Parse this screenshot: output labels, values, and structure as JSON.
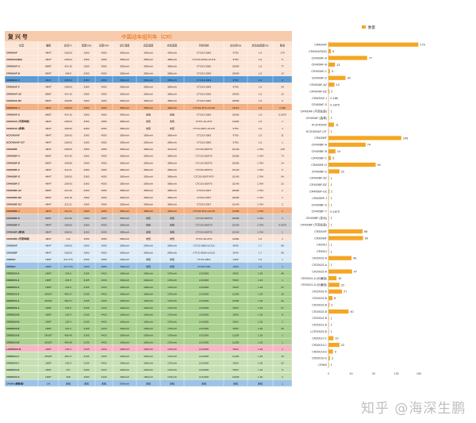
{
  "table": {
    "label_left": "复 兴 号",
    "title": "中国动车组列车（CR）",
    "headers": [
      "车型",
      "编组",
      "定员/人",
      "宽度/mm",
      "高度/mm",
      "设计速度",
      "运营速度",
      "实验速度",
      "列控系统",
      "总功率/kw",
      "启动加速度m/s",
      "数量"
    ],
    "rows": [
      {
        "c": [
          "CR400AF",
          "4M4T",
          "208.93",
          "3360",
          "4050",
          "350km/h",
          "350km/h",
          "420km/h",
          "CTCS3-300S",
          "9750",
          "1.0",
          "179"
        ],
        "bg": "#fce4d6",
        "hl": ""
      },
      {
        "c": [
          "CR400AF(BZ)",
          "4M4T",
          "208.93",
          "3360",
          "4050",
          "350km/h",
          "350km/h",
          "385km/h",
          "CTCS3-300S+LKJ15",
          "9750",
          "1.0",
          "5"
        ],
        "bg": "#fce4d6",
        "hl": ""
      },
      {
        "c": [
          "CR400AF-A",
          "8M8T",
          "414.15",
          "3360",
          "4050",
          "350km/h",
          "350km/h",
          "385km/h",
          "CTCS3-300S",
          "19500",
          "1.0",
          "77"
        ],
        "bg": "#fce4d6",
        "hl": ""
      },
      {
        "c": [
          "CR400AF-B",
          "8M9T",
          "439.9",
          "3360",
          "4050",
          "350km/h",
          "350km/h",
          "385km/h",
          "CTCS3-300S",
          "19500",
          "1.0",
          "13"
        ],
        "bg": "#fce4d6",
        "hl": ""
      },
      {
        "c": [
          "CR400AF-C",
          "4M4T",
          "208.93",
          "3360",
          "4050",
          "350km/h",
          "350km/h",
          "385km/h",
          "CTCS3-300S",
          "9750",
          "1.0",
          "3"
        ],
        "bg": "#5b9bd5",
        "hl": "blue"
      },
      {
        "c": [
          "CR400AF-Z",
          "4M4T",
          "208.93",
          "3360",
          "4050",
          "350km/h",
          "350km/h",
          "385km/h",
          "CTCS3-300S",
          "9750",
          "1.0",
          "34"
        ],
        "bg": "#fce4d6",
        "hl": ""
      },
      {
        "c": [
          "CR400AF-AZ",
          "8M8T",
          "414.15",
          "3360",
          "4050",
          "350km/h",
          "350km/h",
          "385km/h",
          "CTCS3-300S",
          "19500",
          "1.0",
          "12"
        ],
        "bg": "#fce4d6",
        "hl": ""
      },
      {
        "c": [
          "CR400AF-BZ",
          "8M9T",
          "439.85",
          "3360",
          "4050",
          "350km/h",
          "350km/h",
          "385km/h",
          "CTCS3-300S",
          "19500",
          "1.0",
          "2"
        ],
        "bg": "#fce4d6",
        "hl": ""
      },
      {
        "c": [
          "CR400AF-J",
          "4M4T",
          "208.93",
          "3360",
          "4050",
          "350km/h",
          "385km/h",
          "400km/h",
          "CTCS4 ATO+LKJ15",
          "13312",
          "1.0",
          "0.188"
        ],
        "bg": "#f4b183",
        "hl": "orange"
      },
      {
        "c": [
          "CR400AF-S",
          "8M8T",
          "414.15",
          "3360",
          "4050",
          "350km/h",
          "未知",
          "未知",
          "CTCS3-300S",
          "15000",
          "1.0",
          "0.1875"
        ],
        "bg": "#fce4d6",
        "hl": ""
      },
      {
        "c": [
          "CR400AF (可变轨距)",
          "4M4T",
          "208.93",
          "3360",
          "4050",
          "350km/h",
          "未知",
          "未知",
          "CTCS 4G-ATO",
          "11000",
          "1.0",
          "1"
        ],
        "bg": "#fce4d6",
        "hl": ""
      },
      {
        "c": [
          "CR400AF (高寒)",
          "4M4T",
          "208.93",
          "3360",
          "4050",
          "350km/h",
          "未知",
          "未知",
          "CTCS-300T+LKJ15",
          "9750",
          "1.0",
          "1"
        ],
        "bg": "#fce4d6",
        "hl": ""
      },
      {
        "c": [
          "KCIC400AF",
          "4M4T",
          "208.93",
          "3360",
          "4050",
          "350km/h",
          "350km/h",
          "385km/h",
          "CTCS3-300S",
          "9750",
          "1.0",
          "11"
        ],
        "bg": "#fce4d6",
        "hl": ""
      },
      {
        "c": [
          "KCIC400AF-CIT",
          "4M4T",
          "208.93",
          "3360",
          "4050",
          "350km/h",
          "350km/h",
          "385km/h",
          "CTCS3-300S",
          "9750",
          "1.0",
          "1"
        ],
        "bg": "#fce4d6",
        "hl": ""
      },
      {
        "c": [
          "CR400BF",
          "4M4T",
          "208.93",
          "3360",
          "4050",
          "350km/h",
          "350km/h",
          "421km/h",
          "CTCS3-300T/S",
          "10140",
          "1.764",
          "145"
        ],
        "bg": "#fce4d6",
        "hl": ""
      },
      {
        "c": [
          "CR400BF-A",
          "8M8T",
          "414.26",
          "3360",
          "4050",
          "350km/h",
          "350km/h",
          "385km/h",
          "CTCS3-300T/S",
          "20280",
          "1.764",
          "74"
        ],
        "bg": "#fce4d6",
        "hl": ""
      },
      {
        "c": [
          "CR400BF-B",
          "8M9T",
          "438.86",
          "3360",
          "4050",
          "350km/h",
          "350km/h",
          "385km/h",
          "CTCS3-300T/S",
          "20280",
          "1.764",
          "14"
        ],
        "bg": "#fce4d6",
        "hl": ""
      },
      {
        "c": [
          "CR400BF-C",
          "4M4T",
          "211.21",
          "3360",
          "4050",
          "350km/h",
          "350km/h",
          "385km/h",
          "CTCS3-300T/S",
          "10140",
          "1.764",
          "5"
        ],
        "bg": "#fce4d6",
        "hl": ""
      },
      {
        "c": [
          "CR400BF-G",
          "4M4T",
          "208.93",
          "3360",
          "4050",
          "350km/h",
          "350km/h",
          "385km/h",
          "CTCS3-300T/ATO",
          "10140",
          "1.764",
          "94"
        ],
        "bg": "#fce4d6",
        "hl": ""
      },
      {
        "c": [
          "CR400BF-Z",
          "4M4T",
          "208.93",
          "3360",
          "4050",
          "350km/h",
          "350km/h",
          "385km/h",
          "CTCS3-300T/S",
          "10140",
          "1.764",
          "22"
        ],
        "bg": "#fce4d6",
        "hl": ""
      },
      {
        "c": [
          "CR400BF-AZ",
          "8M8T",
          "414.26",
          "3360",
          "4050",
          "350km/h",
          "350km/h",
          "385km/h",
          "CTCS3-300T",
          "20280",
          "1.764",
          "1"
        ],
        "bg": "#fce4d6",
        "hl": ""
      },
      {
        "c": [
          "CR400BF-BZ",
          "8M9T",
          "442.16",
          "3360",
          "4050",
          "350km/h",
          "350km/h",
          "385km/h",
          "CTCS3-300T",
          "20280",
          "1.764",
          "1"
        ],
        "bg": "#fce4d6",
        "hl": ""
      },
      {
        "c": [
          "CR400BF-GZ",
          "4M4T",
          "211.21",
          "3360",
          "4050",
          "350km/h",
          "350km/h",
          "385km/h",
          "CTCS3-300T",
          "10140",
          "1.764",
          "2"
        ],
        "bg": "#fce4d6",
        "hl": ""
      },
      {
        "c": [
          "CR400BF-J",
          "4M4T",
          "211.21",
          "3360",
          "4050",
          "350km/h",
          "385km/h",
          "400km/h",
          "CTCS4 ATO+LKJ15",
          "12480",
          "1.764",
          "1"
        ],
        "bg": "#f4b183",
        "hl": "orange"
      },
      {
        "c": [
          "CR400BF-S",
          "8M8T",
          "414.26",
          "3360",
          "4050",
          "350km/h",
          "未知",
          "未知",
          "CTCS3-300T/S",
          "20280",
          "1.764",
          "1"
        ],
        "bg": "#d0cece",
        "hl": ""
      },
      {
        "c": [
          "CR400BF-Y",
          "4M4T",
          "208.93",
          "3360",
          "4050",
          "350km/h",
          "未知",
          "未知",
          "CTCS3-300T/S",
          "10140",
          "1.764",
          "0.1875"
        ],
        "bg": "#d0cece",
        "hl": ""
      },
      {
        "c": [
          "CR400BF (变动)",
          "4M4T",
          "208.93",
          "3360",
          "4050",
          "350km/h",
          "未知",
          "未知",
          "CTCS3-300T/S",
          "10140",
          "1.764",
          "1"
        ],
        "bg": "#d0cece",
        "hl": ""
      },
      {
        "c": [
          "CR400BF (可变轨距)",
          "4M4T",
          "212",
          "3360",
          "4050",
          "350km/h",
          "未知",
          "未知",
          "CTCS 4G-ATO",
          "11000",
          "1.0",
          "1"
        ],
        "bg": "#fce4d6",
        "hl": ""
      },
      {
        "c": [
          "CR300AF",
          "4M4T",
          "208.93",
          "3360",
          "4050",
          "250km/h",
          "250km/h",
          "280km/h",
          "CTCS-3083+LKJ15",
          "5640",
          "1.7",
          "68"
        ],
        "bg": "#ddebf7",
        "hl": ""
      },
      {
        "c": [
          "CR300BF",
          "4M4T",
          "208.93",
          "3360",
          "4050",
          "250km/h",
          "250km/h",
          "280km/h",
          "CTCS-300H+LKJ15",
          "5640",
          "1.7",
          "69"
        ],
        "bg": "#ddebf7",
        "hl": ""
      },
      {
        "c": [
          "CR200J",
          "1M8T",
          "227.275",
          "3300",
          "4050",
          "160km/h",
          "未知",
          "未知",
          "CTCS-300S",
          "4400",
          "1.0",
          "1"
        ],
        "bg": "#ddebf7",
        "hl": ""
      },
      {
        "c": [
          "CR300J",
          "1M8T",
          "227.275",
          "3300",
          "4050",
          "160km/h",
          "未知",
          "未知",
          "CTCS3-300",
          "4400",
          "1.0",
          "1"
        ],
        "bg": "#9dc3e6",
        "hl": "lightblue"
      },
      {
        "c": [
          "CR200J3-A",
          "1M8T",
          "234.5",
          "3105",
          "4433",
          "160km/h",
          "160km/h",
          "170km/h",
          "LKJ2000",
          "5600",
          "1.26",
          "46"
        ],
        "bg": "#a9d08e",
        "hl": ""
      },
      {
        "c": [
          "CR200J3-A",
          "1M8T",
          "234.5",
          "3105",
          "4433",
          "160km/h",
          "160km/h",
          "170km/h",
          "LKJ2000",
          "5600",
          "1.26",
          "1"
        ],
        "bg": "#a9d08e",
        "hl": ""
      },
      {
        "c": [
          "CR200J3-A",
          "1M8T",
          "234.5",
          "3105",
          "4433",
          "160km/h",
          "160km/h",
          "170km/h",
          "LKJ2000",
          "5600",
          "1.26",
          "47"
        ],
        "bg": "#a9d08e",
        "hl": ""
      },
      {
        "c": [
          "CR200J1-A",
          "2M16T",
          "480.17",
          "3105",
          "4433",
          "160km/h",
          "160km/h",
          "170km/h",
          "LKJ2000",
          "11200",
          "1.26",
          "16"
        ],
        "bg": "#a9d08e",
        "hl": ""
      },
      {
        "c": [
          "CR200J1-A",
          "2M16T",
          "480.17",
          "3105",
          "4433",
          "160km/h",
          "160km/h",
          "170km/h",
          "LKJ2000",
          "11200",
          "1.26",
          "22"
        ],
        "bg": "#a9d08e",
        "hl": ""
      },
      {
        "c": [
          "CR200J3-A",
          "1M8T",
          "234.5",
          "3105",
          "4433",
          "160km/h",
          "160km/h",
          "170km/h",
          "LKJ2000",
          "5600",
          "1.26",
          "27"
        ],
        "bg": "#a9d08e",
        "hl": ""
      },
      {
        "c": [
          "CR200J3-B",
          "1M8T",
          "232.4",
          "3105",
          "4433",
          "160km/h",
          "160km/h",
          "170km/h",
          "LKJ2000",
          "5600",
          "1.26",
          "8"
        ],
        "bg": "#a9d08e",
        "hl": ""
      },
      {
        "c": [
          "CR200J3-B",
          "1M8T",
          "232.4",
          "3105",
          "4433",
          "160km/h",
          "160km/h",
          "170km/h",
          "LKJ2000",
          "5600",
          "1.26",
          "2"
        ],
        "bg": "#a9d08e",
        "hl": ""
      },
      {
        "c": [
          "CR200J3-B",
          "1M8T",
          "232.4",
          "3105",
          "4433",
          "160km/h",
          "160km/h",
          "170km/h",
          "LKJ2000",
          "5600",
          "1.26",
          "40"
        ],
        "bg": "#a9d08e",
        "hl": ""
      },
      {
        "c": [
          "CR200J1-B",
          "2M16T",
          "456.46",
          "3105",
          "4433",
          "160km/h",
          "160km/h",
          "170km/h",
          "LKJ2000",
          "11200",
          "1.26",
          "1"
        ],
        "bg": "#a9d08e",
        "hl": ""
      },
      {
        "c": [
          "CR200J1-B",
          "2M16T",
          "456.46",
          "3105",
          "4433",
          "160km/h",
          "160km/h",
          "170km/h",
          "LKJ2000",
          "11200",
          "1.26",
          "1"
        ],
        "bg": "#a9d08e",
        "hl": ""
      },
      {
        "c": [
          "LCR200J3-B",
          "1M8T",
          "232.4",
          "3105",
          "4433",
          "160km/h",
          "160km/h",
          "170km/h",
          "LKJ2000",
          "5600",
          "1.26",
          "1"
        ],
        "bg": "#f4b6c2",
        "hl": "pink"
      },
      {
        "c": [
          "CR200J1-C",
          "2M16T",
          "480.17",
          "3105",
          "4433",
          "160km/h",
          "160km/h",
          "170km/h",
          "LKJ2000",
          "11200",
          "1.26",
          "10"
        ],
        "bg": "#c6e0b4",
        "hl": ""
      },
      {
        "c": [
          "CR200J3-C",
          "1M8T",
          "232.4",
          "3105",
          "4433",
          "160km/h",
          "160km/h",
          "170km/h",
          "LKJ2000",
          "5600",
          "1.26",
          "22"
        ],
        "bg": "#c6e0b4",
        "hl": ""
      },
      {
        "c": [
          "CR200J3-D",
          "1M8T",
          "237",
          "3300",
          "4433",
          "160km/h",
          "160km/h",
          "170km/h",
          "LKJ2000",
          "5600",
          "1.26",
          "9"
        ],
        "bg": "#c6e0b4",
        "hl": ""
      },
      {
        "c": [
          "CR200J3-G",
          "1M8T",
          "308",
          "3300",
          "4433",
          "160km/h",
          "160km/h",
          "170km/h",
          "LKJ2000",
          "12000",
          "1.26",
          "3"
        ],
        "bg": "#c6e0b4",
        "hl": ""
      },
      {
        "c": [
          "CF600 (储备型)",
          "1M",
          "未知",
          "未知",
          "未知",
          "600km/h",
          "未知",
          "未知",
          "未知",
          "未知",
          "未知",
          "1"
        ],
        "bg": "#9dc3e6",
        "hl": "lightblue"
      }
    ]
  },
  "chart_data": {
    "type": "bar",
    "orientation": "horizontal",
    "legend": "数量",
    "legend_position": "top",
    "bar_color": "#f5a623",
    "xlim": [
      0,
      180
    ],
    "xticks": [
      0,
      45,
      90,
      135,
      180
    ],
    "grid": false,
    "data_labels": true,
    "categories": [
      "CR400AF",
      "CR400AF(BZ)",
      "CR400AF-A",
      "CR400AF-B",
      "CR400AF-C",
      "CR400AF-Z",
      "CR400AF-AZ",
      "CR400AF-BZ",
      "CR400AF-J",
      "CR400AF-S",
      "CR400AF (可变轨距)",
      "CR400AF (高寒)",
      "KCIC400AF",
      "KCIC400AF-CIT",
      "CR400BF",
      "CR400BF-A",
      "CR400BF-B",
      "CR400BF-C",
      "CR400BF-G",
      "CR400BF-Z",
      "CR400BF-AZ",
      "CR400BF-BZ",
      "CR400BF-GZ",
      "CR400BF-J",
      "CR400BF-S",
      "CR400BF-Y",
      "CR400BF (变动)",
      "CR400BF (可变轨距)",
      "CR300AF",
      "CR300BF",
      "CR200J",
      "CR300J",
      "CR200J3-A",
      "CR200J3-A",
      "CR200J3-A",
      "CR200J1-A (长编组)",
      "CR200J1-A (长编组)",
      "CR200J3-A",
      "CR200J3-B",
      "CR200J3-B",
      "CR200J3-B",
      "CR200J1-B",
      "CR200J1-B",
      "LCR200J3-B",
      "CR200J1-C",
      "CR200J3-C",
      "CR200J3-D",
      "CR200J3-G",
      "CF600"
    ],
    "values": [
      179,
      5,
      77,
      13,
      3,
      34,
      12,
      2,
      0.188,
      0.1875,
      1,
      1,
      11,
      1,
      145,
      74,
      14,
      5,
      94,
      22,
      1,
      1,
      2,
      1,
      1,
      0.1875,
      1,
      1,
      68,
      69,
      1,
      1,
      46,
      1,
      47,
      16,
      22,
      27,
      8,
      2,
      40,
      1,
      1,
      1,
      10,
      22,
      9,
      3,
      1
    ]
  },
  "watermark": "知乎 @海深生鹏"
}
